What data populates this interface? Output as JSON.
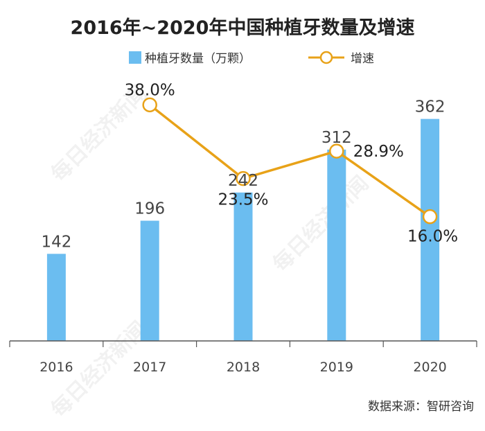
{
  "chart_data": {
    "type": "bar",
    "title": "2016年~2020年中国种植牙数量及增速",
    "categories": [
      "2016",
      "2017",
      "2018",
      "2019",
      "2020"
    ],
    "series": [
      {
        "name": "种植牙数量（万颗）",
        "kind": "bar",
        "values": [
          142,
          196,
          242,
          312,
          362
        ],
        "labels": [
          "142",
          "196",
          "242",
          "312",
          "362"
        ]
      },
      {
        "name": "增速",
        "kind": "line",
        "values": [
          null,
          38.0,
          23.5,
          28.9,
          16.0
        ],
        "labels": [
          "",
          "38.0%",
          "23.5%",
          "28.9%",
          "16.0%"
        ]
      }
    ],
    "bar_ylim": [
      0,
      400
    ],
    "line_ylim": [
      0,
      45
    ],
    "xlabel": "",
    "ylabel": "",
    "legend": "top-center",
    "grid": false
  },
  "colors": {
    "bar": "#6BBDF0",
    "line": "#E8A218",
    "axis": "#555555"
  },
  "source": "数据来源：智研咨询",
  "watermark": "每日经济新闻"
}
